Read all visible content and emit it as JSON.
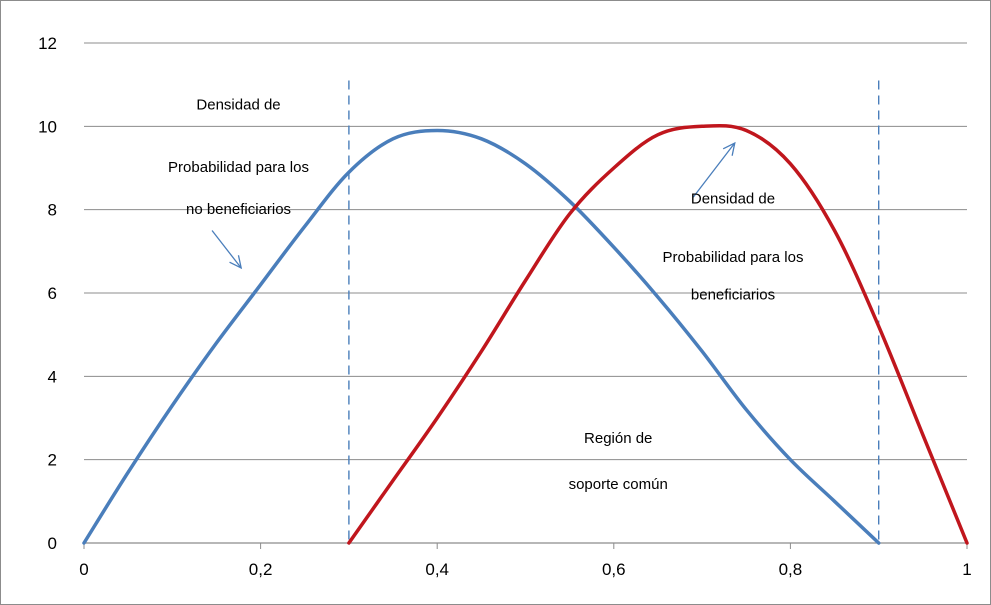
{
  "chart_data": {
    "type": "line",
    "title": "",
    "xlabel": "",
    "ylabel": "",
    "xlim": [
      0,
      1
    ],
    "ylim": [
      0,
      12
    ],
    "x_ticks": [
      0,
      0.2,
      0.4,
      0.6,
      0.8,
      1
    ],
    "x_tick_labels": [
      "0",
      "0,2",
      "0,4",
      "0,6",
      "0,8",
      "1"
    ],
    "y_ticks": [
      0,
      2,
      4,
      6,
      8,
      10,
      12
    ],
    "y_tick_labels": [
      "0",
      "2",
      "4",
      "6",
      "8",
      "10",
      "12"
    ],
    "grid": "horizontal",
    "legend": "none",
    "series": [
      {
        "color": "#4a7ebb",
        "x": [
          0,
          0.05,
          0.1,
          0.15,
          0.2,
          0.25,
          0.3,
          0.35,
          0.4,
          0.45,
          0.5,
          0.55,
          0.6,
          0.65,
          0.7,
          0.75,
          0.8,
          0.85,
          0.9
        ],
        "y": [
          0,
          1.7,
          3.3,
          4.8,
          6.2,
          7.6,
          8.9,
          9.7,
          9.9,
          9.7,
          9.1,
          8.2,
          7.1,
          5.9,
          4.6,
          3.2,
          2.0,
          1.0,
          0
        ]
      },
      {
        "color": "#c0161d",
        "x": [
          0.3,
          0.35,
          0.4,
          0.45,
          0.5,
          0.55,
          0.6,
          0.65,
          0.7,
          0.75,
          0.8,
          0.85,
          0.9,
          0.95,
          1
        ],
        "y": [
          0,
          1.5,
          3.0,
          4.6,
          6.3,
          7.9,
          9.0,
          9.8,
          10.0,
          9.9,
          9.1,
          7.5,
          5.2,
          2.6,
          0
        ]
      }
    ],
    "vertical_lines": [
      {
        "x": 0.3,
        "style": "dashed",
        "color": "#4a7ebb"
      },
      {
        "x": 0.9,
        "style": "dashed",
        "color": "#4a7ebb"
      }
    ],
    "annotations": [
      {
        "lines": [
          "Densidad de",
          "Probabilidad para los",
          "no beneficiarios"
        ],
        "x": 0.175,
        "y": [
          10.4,
          8.9,
          7.9
        ]
      },
      {
        "lines": [
          "Densidad de",
          "Probabilidad para los",
          "beneficiarios"
        ],
        "x": 0.735,
        "y": [
          8.15,
          6.75,
          5.85
        ]
      },
      {
        "lines": [
          "Región de",
          "soporte común"
        ],
        "x": 0.605,
        "y": [
          2.4,
          1.3
        ]
      }
    ],
    "arrows": [
      {
        "from": [
          0.145,
          7.5
        ],
        "to": [
          0.178,
          6.6
        ]
      },
      {
        "from": [
          0.69,
          8.3
        ],
        "to": [
          0.737,
          9.6
        ]
      }
    ]
  }
}
